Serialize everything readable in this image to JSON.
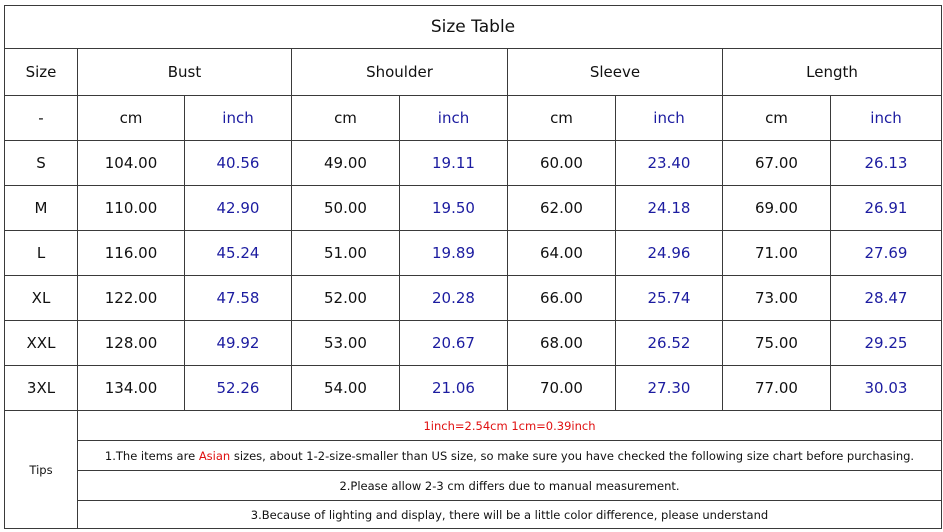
{
  "title": "Size Table",
  "header": [
    "Size",
    "Bust",
    "Shoulder",
    "Sleeve",
    "Length"
  ],
  "units": [
    "-",
    "cm",
    "inch",
    "cm",
    "inch",
    "cm",
    "inch",
    "cm",
    "inch"
  ],
  "rows": [
    [
      "S",
      "104.00",
      "40.56",
      "49.00",
      "19.11",
      "60.00",
      "23.40",
      "67.00",
      "26.13"
    ],
    [
      "M",
      "110.00",
      "42.90",
      "50.00",
      "19.50",
      "62.00",
      "24.18",
      "69.00",
      "26.91"
    ],
    [
      "L",
      "116.00",
      "45.24",
      "51.00",
      "19.89",
      "64.00",
      "24.96",
      "71.00",
      "27.69"
    ],
    [
      "XL",
      "122.00",
      "47.58",
      "52.00",
      "20.28",
      "66.00",
      "25.74",
      "73.00",
      "28.47"
    ],
    [
      "XXL",
      "128.00",
      "49.92",
      "53.00",
      "20.67",
      "68.00",
      "26.52",
      "75.00",
      "29.25"
    ],
    [
      "3XL",
      "134.00",
      "52.26",
      "54.00",
      "21.06",
      "70.00",
      "27.30",
      "77.00",
      "30.03"
    ]
  ],
  "tips": {
    "label": "Tips",
    "lines": [
      [
        "1inch=2.54cm 1cm=0.39inch"
      ],
      [
        "1.The items are ",
        "Asian",
        " sizes, about 1-2-size-smaller than US size, so make sure you have checked the following size chart before purchasing."
      ],
      [
        "2.Please allow 2-3 cm differs due to manual measurement."
      ],
      [
        "3.Because of lighting and display, there will be a little color difference, please understand"
      ]
    ]
  }
}
